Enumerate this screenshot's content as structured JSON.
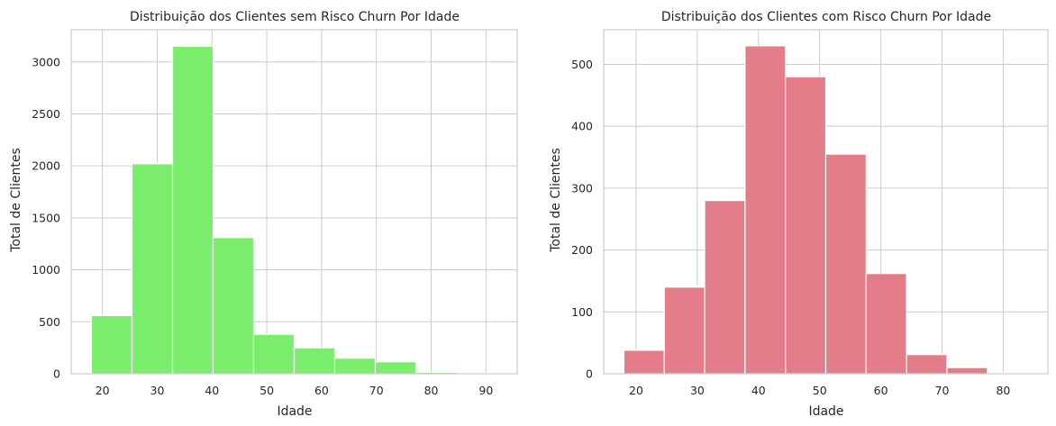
{
  "chart_data": [
    {
      "type": "bar",
      "title": "Distribuição dos Clientes sem Risco Churn Por Idade",
      "xlabel": "Idade",
      "ylabel": "Total de Clientes",
      "bins": [
        [
          18,
          25.4
        ],
        [
          25.4,
          32.8
        ],
        [
          32.8,
          40.2
        ],
        [
          40.2,
          47.6
        ],
        [
          47.6,
          55.0
        ],
        [
          55.0,
          62.4
        ],
        [
          62.4,
          69.8
        ],
        [
          69.8,
          77.2
        ],
        [
          77.2,
          84.6
        ],
        [
          84.6,
          92.0
        ]
      ],
      "values": [
        560,
        2020,
        3150,
        1310,
        380,
        250,
        150,
        115,
        15,
        10
      ],
      "xlim": [
        14.3,
        95.7
      ],
      "ylim": [
        0,
        3310
      ],
      "xticks": [
        20,
        30,
        40,
        50,
        60,
        70,
        80,
        90
      ],
      "yticks": [
        0,
        500,
        1000,
        1500,
        2000,
        2500,
        3000
      ],
      "color": "#7aed6d",
      "grid": true
    },
    {
      "type": "bar",
      "title": "Distribuição dos Clientes com Risco Churn Por Idade",
      "xlabel": "Idade",
      "ylabel": "Total de Clientes",
      "bins": [
        [
          18,
          24.6
        ],
        [
          24.6,
          31.2
        ],
        [
          31.2,
          37.8
        ],
        [
          37.8,
          44.4
        ],
        [
          44.4,
          51.0
        ],
        [
          51.0,
          57.6
        ],
        [
          57.6,
          64.2
        ],
        [
          64.2,
          70.8
        ],
        [
          70.8,
          77.4
        ],
        [
          77.4,
          84.0
        ]
      ],
      "values": [
        38,
        140,
        280,
        530,
        480,
        355,
        162,
        31,
        10,
        1
      ],
      "xlim": [
        14.7,
        87.3
      ],
      "ylim": [
        0,
        556
      ],
      "xticks": [
        20,
        30,
        40,
        50,
        60,
        70,
        80
      ],
      "yticks": [
        0,
        100,
        200,
        300,
        400,
        500
      ],
      "color": "#e47d8a",
      "grid": true
    }
  ]
}
